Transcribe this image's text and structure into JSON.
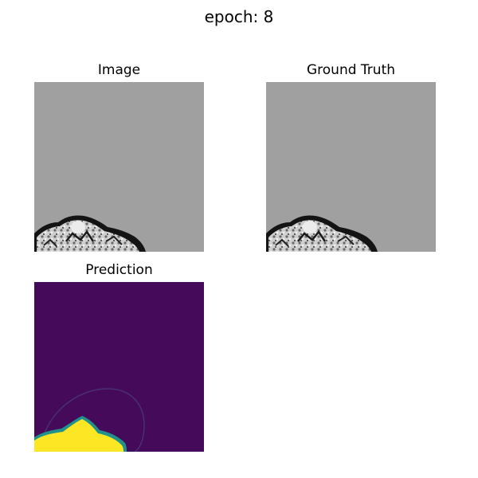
{
  "figure": {
    "suptitle": "epoch: 8"
  },
  "panels": {
    "image": {
      "title": "Image"
    },
    "ground_truth": {
      "title": "Ground Truth"
    },
    "prediction": {
      "title": "Prediction"
    }
  },
  "colors": {
    "background_gray": "#a0a0a0",
    "tissue_light": "#d8d8d8",
    "tissue_dark": "#141414",
    "prediction_background": "#450a5a",
    "prediction_foreground": "#fde725",
    "prediction_edge": "#21918c"
  }
}
